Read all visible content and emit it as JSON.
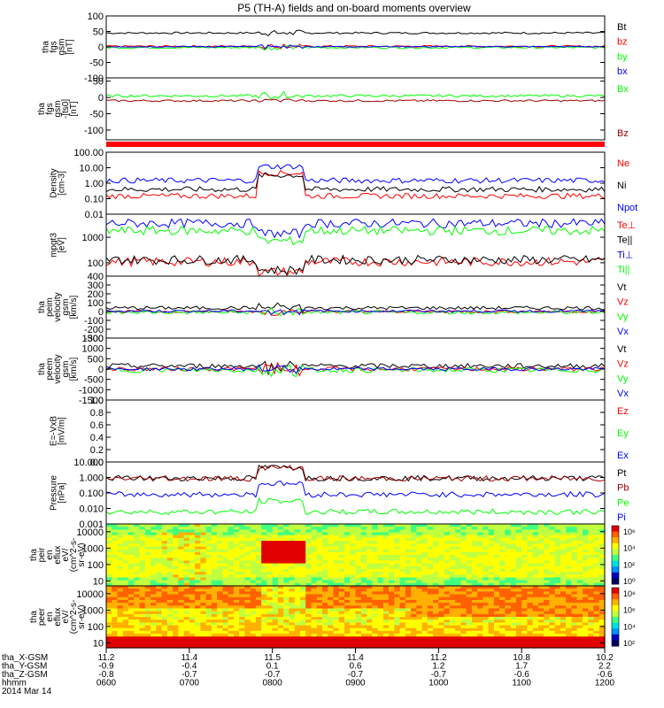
{
  "title": "P5 (TH-A) fields and on-board moments overview",
  "time_axis": {
    "ticks": [
      "0600",
      "0700",
      "0800",
      "0900",
      "1000",
      "1100",
      "1200"
    ],
    "rows": [
      {
        "label": "tha_X-GSM",
        "values": [
          "11.2",
          "11.4",
          "11.5",
          "11.4",
          "11.2",
          "10.8",
          "10.2"
        ]
      },
      {
        "label": "tha_Y-GSM",
        "values": [
          "-0.9",
          "-0.4",
          "0.1",
          "0.6",
          "1.2",
          "1.7",
          "2.2"
        ]
      },
      {
        "label": "tha_Z-GSM",
        "values": [
          "-0.8",
          "-0.7",
          "-0.7",
          "-0.7",
          "-0.7",
          "-0.6",
          "-0.6"
        ]
      },
      {
        "label": "hhmm",
        "values": [
          "0600",
          "0700",
          "0800",
          "0900",
          "1000",
          "1100",
          "1200"
        ]
      }
    ],
    "date": "2014 Mar 14"
  },
  "colors": {
    "black": "#000000",
    "red": "#ff0000",
    "green": "#00ff00",
    "blue": "#0000ff",
    "darkred": "#a00000"
  },
  "chart_data": [
    {
      "id": "fgs",
      "type": "line",
      "ylabel": [
        "tha",
        "fgs",
        "gsm",
        "[nT]"
      ],
      "ylim": [
        -100,
        100
      ],
      "yticks": [
        "100",
        "50",
        "0",
        "-50",
        "-100"
      ],
      "yvals": [
        100,
        50,
        0,
        -50,
        -100
      ],
      "series": [
        {
          "name": "Bt",
          "color": "#000000",
          "base": 45,
          "noise": 3
        },
        {
          "name": "bz",
          "color": "#ff0000",
          "base": 2,
          "noise": 3
        },
        {
          "name": "by",
          "color": "#00ff00",
          "base": -2,
          "noise": 3
        },
        {
          "name": "bx",
          "color": "#0000ff",
          "base": 1,
          "noise": 2
        }
      ]
    },
    {
      "id": "fgs_dsl",
      "type": "line",
      "ylabel": [
        "tha",
        "fgs",
        "gsm",
        "-[ts0]",
        "[nT]"
      ],
      "ylim": [
        -130,
        60
      ],
      "yticks": [
        "50",
        "0",
        "-50",
        "-100"
      ],
      "yvals": [
        50,
        0,
        -50,
        -100
      ],
      "series": [
        {
          "name": "Bx",
          "color": "#00ff00",
          "base": 5,
          "noise": 4
        },
        {
          "name": "Bz",
          "color": "#a00000",
          "base": -10,
          "noise": 3
        }
      ]
    },
    {
      "id": "density",
      "type": "line",
      "log": true,
      "ylabel": [
        "Density",
        "[cm-3]"
      ],
      "ylim": [
        0.01,
        100
      ],
      "yticks": [
        "100.00",
        "10.00",
        "1.00",
        "0.10",
        "0.01"
      ],
      "yvals": [
        100,
        10,
        1,
        0.1,
        0.01
      ],
      "series": [
        {
          "name": "Ne",
          "color": "#ff0000",
          "base": 0.15
        },
        {
          "name": "Ni",
          "color": "#000000",
          "base": 0.4
        },
        {
          "name": "Npot",
          "color": "#0000ff",
          "base": 1.5
        }
      ]
    },
    {
      "id": "temp",
      "type": "line",
      "log": true,
      "ylabel": [
        "mpgt3",
        "[eV]"
      ],
      "ylim": [
        30,
        8000
      ],
      "yticks": [
        "1000",
        "100"
      ],
      "yvals": [
        1000,
        100
      ],
      "series": [
        {
          "name": "Te⊥",
          "color": "#ff0000",
          "base": 110
        },
        {
          "name": "Te||",
          "color": "#000000",
          "base": 130
        },
        {
          "name": "Ti⊥",
          "color": "#0000ff",
          "base": 3500
        },
        {
          "name": "Ti||",
          "color": "#00ff00",
          "base": 1800
        }
      ]
    },
    {
      "id": "peim_v",
      "type": "line",
      "ylabel": [
        "tha",
        "peim",
        "velocity",
        "gsm",
        "[km/s]"
      ],
      "ylim": [
        -300,
        400
      ],
      "yticks": [
        "400",
        "300",
        "200",
        "100",
        "0",
        "-100",
        "-200",
        "-300"
      ],
      "yvals": [
        400,
        300,
        200,
        100,
        0,
        -100,
        -200,
        -300
      ],
      "series": [
        {
          "name": "Vt",
          "color": "#000000",
          "base": 40,
          "noise": 20
        },
        {
          "name": "Vz",
          "color": "#ff0000",
          "base": 0,
          "noise": 15
        },
        {
          "name": "Vy",
          "color": "#00ff00",
          "base": -10,
          "noise": 20
        },
        {
          "name": "Vx",
          "color": "#0000ff",
          "base": 5,
          "noise": 15
        }
      ]
    },
    {
      "id": "peem_v",
      "type": "line",
      "ylabel": [
        "tha",
        "peem",
        "velocity",
        "gsm",
        "[km/s]"
      ],
      "ylim": [
        -1500,
        1500
      ],
      "yticks": [
        "1500",
        "1000",
        "500",
        "0",
        "-500",
        "-1000",
        "-1500"
      ],
      "yvals": [
        1500,
        1000,
        500,
        0,
        -500,
        -1000,
        -1500
      ],
      "series": [
        {
          "name": "Vt",
          "color": "#000000",
          "base": 150,
          "noise": 120
        },
        {
          "name": "Vz",
          "color": "#ff0000",
          "base": 0,
          "noise": 100
        },
        {
          "name": "Vy",
          "color": "#00ff00",
          "base": -50,
          "noise": 120
        },
        {
          "name": "Vx",
          "color": "#0000ff",
          "base": 0,
          "noise": 80
        }
      ]
    },
    {
      "id": "efield",
      "type": "line",
      "ylabel": [
        "E=-VxB",
        "[mV/m]"
      ],
      "ylim": [
        0,
        1
      ],
      "yticks": [
        "1.0",
        "0.8",
        "0.6",
        "0.4",
        "0.2",
        "0.0"
      ],
      "yvals": [
        1,
        0.8,
        0.6,
        0.4,
        0.2,
        0
      ],
      "series": [
        {
          "name": "Ez",
          "color": "#ff0000"
        },
        {
          "name": "Ey",
          "color": "#00ff00"
        },
        {
          "name": "Ex",
          "color": "#0000ff"
        }
      ]
    },
    {
      "id": "pressure",
      "type": "line",
      "log": true,
      "ylabel": [
        "Pressure",
        "[nPa]"
      ],
      "ylim": [
        0.001,
        10
      ],
      "yticks": [
        "10.000",
        "1.000",
        "0.100",
        "0.010",
        "0.001"
      ],
      "yvals": [
        10,
        1,
        0.1,
        0.01,
        0.001
      ],
      "series": [
        {
          "name": "Pt",
          "color": "#000000",
          "base": 0.9
        },
        {
          "name": "Pb",
          "color": "#a00000",
          "base": 0.85
        },
        {
          "name": "Pe",
          "color": "#00ff00",
          "base": 0.006
        },
        {
          "name": "Pi",
          "color": "#0000ff",
          "base": 0.08
        }
      ]
    },
    {
      "id": "peir",
      "type": "heatmap",
      "ylabel": [
        "tha",
        "peir",
        "en",
        "eflux",
        "eV/",
        "(cm^2-s-",
        "sr-eV)"
      ],
      "yticks": [
        "10000",
        "1000",
        "100",
        "10"
      ],
      "yvals": [
        10000,
        1000,
        100,
        10
      ],
      "ylim": [
        5,
        30000
      ],
      "colorbar": {
        "labels": [
          "10⁶",
          "10⁴",
          "10²",
          "10⁰"
        ]
      }
    },
    {
      "id": "peer",
      "type": "heatmap",
      "ylabel": [
        "tha",
        "peer",
        "en",
        "eflux",
        "eV/",
        "(cm^2-s-",
        "sr-eV)"
      ],
      "yticks": [
        "10000",
        "1000",
        "100",
        "10"
      ],
      "yvals": [
        10000,
        1000,
        100,
        10
      ],
      "ylim": [
        5,
        30000
      ],
      "colorbar": {
        "labels": [
          "10⁸",
          "10⁶",
          "10⁴",
          "10²"
        ]
      }
    }
  ]
}
